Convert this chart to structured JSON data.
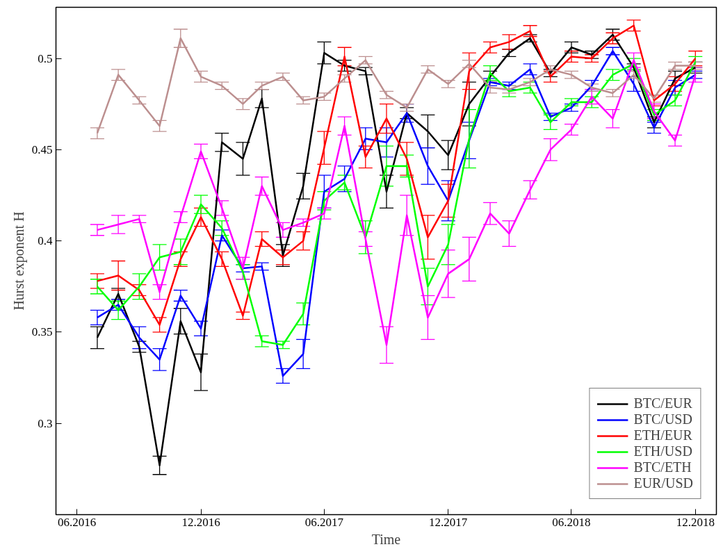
{
  "chart_data": {
    "type": "line",
    "xlabel": "Time",
    "ylabel": "Hurst exponent H",
    "x": [
      "2016-07",
      "2016-08",
      "2016-09",
      "2016-10",
      "2016-11",
      "2016-12",
      "2017-01",
      "2017-02",
      "2017-03",
      "2017-04",
      "2017-05",
      "2017-06",
      "2017-07",
      "2017-08",
      "2017-09",
      "2017-10",
      "2017-11",
      "2017-12",
      "2018-01",
      "2018-02",
      "2018-03",
      "2018-04",
      "2018-05",
      "2018-06",
      "2018-07",
      "2018-08",
      "2018-09",
      "2018-10",
      "2018-11",
      "2018-12"
    ],
    "xlim": [
      "2016-05",
      "2019-01"
    ],
    "ylim": [
      0.25,
      0.528
    ],
    "xticks": [
      {
        "value": "2016-06",
        "label": "06.2016"
      },
      {
        "value": "2016-12",
        "label": "12.2016"
      },
      {
        "value": "2017-06",
        "label": "06.2017"
      },
      {
        "value": "2017-12",
        "label": "12.2017"
      },
      {
        "value": "2018-06",
        "label": "06.2018"
      },
      {
        "value": "2018-12",
        "label": "12.2018"
      }
    ],
    "yticks": [
      0.3,
      0.35,
      0.4,
      0.45,
      0.5
    ],
    "grid": false,
    "legend": "bottom right",
    "marker": "none",
    "line_style": "solid",
    "series": [
      {
        "name": "BTC/EUR",
        "color": "#000000",
        "values": [
          0.347,
          0.371,
          0.342,
          0.277,
          0.356,
          0.328,
          0.454,
          0.445,
          0.478,
          0.392,
          0.43,
          0.503,
          0.496,
          0.493,
          0.427,
          0.47,
          0.46,
          0.447,
          0.475,
          0.49,
          0.503,
          0.511,
          0.492,
          0.506,
          0.502,
          0.513,
          0.495,
          0.465,
          0.489,
          0.495
        ],
        "errors": [
          0.006,
          0.003,
          0.003,
          0.005,
          0.007,
          0.01,
          0.005,
          0.009,
          0.005,
          0.006,
          0.007,
          0.006,
          0.003,
          0.002,
          0.009,
          0.003,
          0.009,
          0.008,
          0.012,
          0.003,
          0.002,
          0.002,
          0.002,
          0.003,
          0.002,
          0.003,
          0.002,
          0.003,
          0.004,
          0.003
        ]
      },
      {
        "name": "BTC/USD",
        "color": "#0000ff",
        "values": [
          0.358,
          0.365,
          0.347,
          0.335,
          0.37,
          0.352,
          0.403,
          0.385,
          0.386,
          0.326,
          0.338,
          0.427,
          0.434,
          0.456,
          0.454,
          0.47,
          0.441,
          0.422,
          0.455,
          0.487,
          0.485,
          0.494,
          0.468,
          0.473,
          0.485,
          0.504,
          0.486,
          0.462,
          0.484,
          0.491
        ],
        "errors": [
          0.004,
          0.003,
          0.006,
          0.006,
          0.003,
          0.004,
          0.003,
          0.002,
          0.002,
          0.004,
          0.008,
          0.009,
          0.007,
          0.006,
          0.008,
          0.005,
          0.01,
          0.011,
          0.01,
          0.002,
          0.002,
          0.003,
          0.002,
          0.002,
          0.003,
          0.002,
          0.004,
          0.003,
          0.004,
          0.002
        ]
      },
      {
        "name": "ETH/EUR",
        "color": "#ff0000",
        "values": [
          0.378,
          0.381,
          0.373,
          0.354,
          0.39,
          0.413,
          0.39,
          0.359,
          0.401,
          0.391,
          0.4,
          0.451,
          0.501,
          0.446,
          0.467,
          0.445,
          0.402,
          0.422,
          0.493,
          0.506,
          0.509,
          0.515,
          0.49,
          0.501,
          0.5,
          0.511,
          0.518,
          0.477,
          0.486,
          0.5
        ],
        "errors": [
          0.004,
          0.008,
          0.003,
          0.004,
          0.004,
          0.005,
          0.004,
          0.002,
          0.004,
          0.004,
          0.005,
          0.009,
          0.005,
          0.006,
          0.008,
          0.009,
          0.012,
          0.009,
          0.01,
          0.003,
          0.004,
          0.003,
          0.003,
          0.003,
          0.002,
          0.003,
          0.003,
          0.003,
          0.004,
          0.004
        ]
      },
      {
        "name": "ETH/USD",
        "color": "#00ff00",
        "values": [
          0.375,
          0.362,
          0.375,
          0.391,
          0.394,
          0.42,
          0.407,
          0.383,
          0.345,
          0.343,
          0.36,
          0.422,
          0.432,
          0.402,
          0.441,
          0.441,
          0.375,
          0.398,
          0.456,
          0.492,
          0.482,
          0.484,
          0.465,
          0.476,
          0.476,
          0.491,
          0.497,
          0.469,
          0.477,
          0.498
        ],
        "errors": [
          0.004,
          0.005,
          0.007,
          0.007,
          0.007,
          0.005,
          0.004,
          0.004,
          0.003,
          0.002,
          0.006,
          0.005,
          0.004,
          0.009,
          0.011,
          0.006,
          0.01,
          0.011,
          0.016,
          0.004,
          0.003,
          0.003,
          0.004,
          0.002,
          0.003,
          0.003,
          0.003,
          0.003,
          0.003,
          0.003
        ]
      },
      {
        "name": "BTC/ETH",
        "color": "#ff00ff",
        "values": [
          0.406,
          0.409,
          0.412,
          0.372,
          0.413,
          0.449,
          0.418,
          0.385,
          0.43,
          0.406,
          0.41,
          0.415,
          0.463,
          0.401,
          0.343,
          0.414,
          0.358,
          0.382,
          0.39,
          0.415,
          0.404,
          0.428,
          0.45,
          0.461,
          0.479,
          0.467,
          0.499,
          0.471,
          0.455,
          0.491
        ],
        "errors": [
          0.003,
          0.005,
          0.002,
          0.004,
          0.003,
          0.004,
          0.004,
          0.006,
          0.005,
          0.004,
          0.002,
          0.003,
          0.005,
          0.004,
          0.01,
          0.011,
          0.012,
          0.013,
          0.012,
          0.006,
          0.007,
          0.005,
          0.006,
          0.003,
          0.004,
          0.005,
          0.004,
          0.004,
          0.003,
          0.004
        ]
      },
      {
        "name": "EUR/USD",
        "color": "#bc8f8f",
        "values": [
          0.459,
          0.491,
          0.477,
          0.463,
          0.511,
          0.49,
          0.485,
          0.475,
          0.485,
          0.49,
          0.477,
          0.479,
          0.489,
          0.499,
          0.48,
          0.473,
          0.494,
          0.486,
          0.497,
          0.484,
          0.483,
          0.487,
          0.494,
          0.491,
          0.484,
          0.481,
          0.491,
          0.478,
          0.496,
          0.496
        ],
        "errors": [
          0.003,
          0.003,
          0.002,
          0.003,
          0.005,
          0.003,
          0.002,
          0.003,
          0.002,
          0.002,
          0.002,
          0.002,
          0.002,
          0.002,
          0.002,
          0.002,
          0.002,
          0.002,
          0.002,
          0.003,
          0.002,
          0.002,
          0.002,
          0.002,
          0.002,
          0.002,
          0.002,
          0.002,
          0.002,
          0.002
        ]
      }
    ]
  }
}
